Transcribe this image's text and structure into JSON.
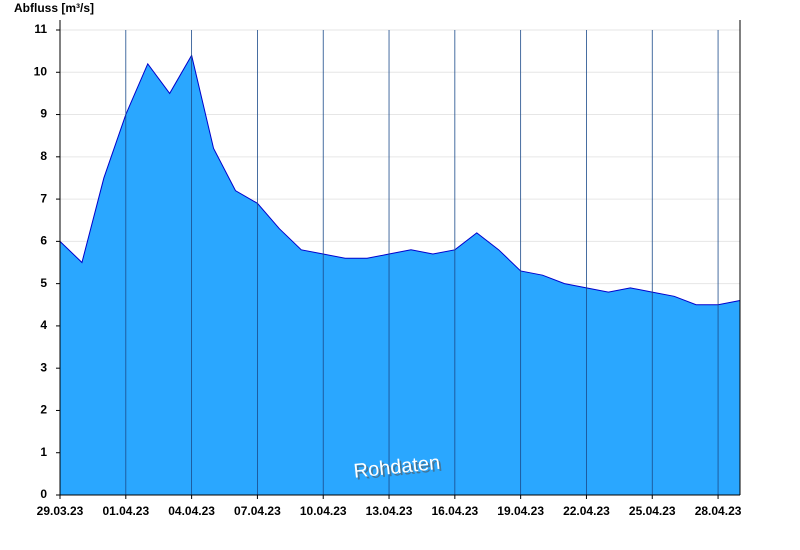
{
  "chart_data": {
    "type": "area",
    "title": "Abfluss [m³/s]",
    "annotation": "Rohdaten",
    "x": [
      "29.03.23",
      "30.03.23",
      "31.03.23",
      "01.04.23",
      "02.04.23",
      "03.04.23",
      "04.04.23",
      "05.04.23",
      "06.04.23",
      "07.04.23",
      "08.04.23",
      "09.04.23",
      "10.04.23",
      "11.04.23",
      "12.04.23",
      "13.04.23",
      "14.04.23",
      "15.04.23",
      "16.04.23",
      "17.04.23",
      "18.04.23",
      "19.04.23",
      "20.04.23",
      "21.04.23",
      "22.04.23",
      "23.04.23",
      "24.04.23",
      "25.04.23",
      "26.04.23",
      "27.04.23",
      "28.04.23",
      "29.04.23"
    ],
    "series": [
      {
        "name": "Abfluss",
        "color": "#2aa7ff",
        "values": [
          6.0,
          5.5,
          7.5,
          9.0,
          10.2,
          9.5,
          10.4,
          8.2,
          7.2,
          6.9,
          6.3,
          5.8,
          5.7,
          5.6,
          5.6,
          5.7,
          5.8,
          5.7,
          5.8,
          6.2,
          5.8,
          5.3,
          5.2,
          5.0,
          4.9,
          4.8,
          4.9,
          4.8,
          4.7,
          4.5,
          4.5,
          4.6
        ]
      }
    ],
    "xlim": [
      "29.03.23",
      "29.04.23"
    ],
    "xticks": [
      "29.03.23",
      "01.04.23",
      "04.04.23",
      "07.04.23",
      "10.04.23",
      "13.04.23",
      "16.04.23",
      "19.04.23",
      "22.04.23",
      "25.04.23",
      "28.04.23"
    ],
    "ylim": [
      0,
      11
    ],
    "yticks": [
      0,
      1,
      2,
      3,
      4,
      5,
      6,
      7,
      8,
      9,
      10,
      11
    ],
    "grid": true
  }
}
